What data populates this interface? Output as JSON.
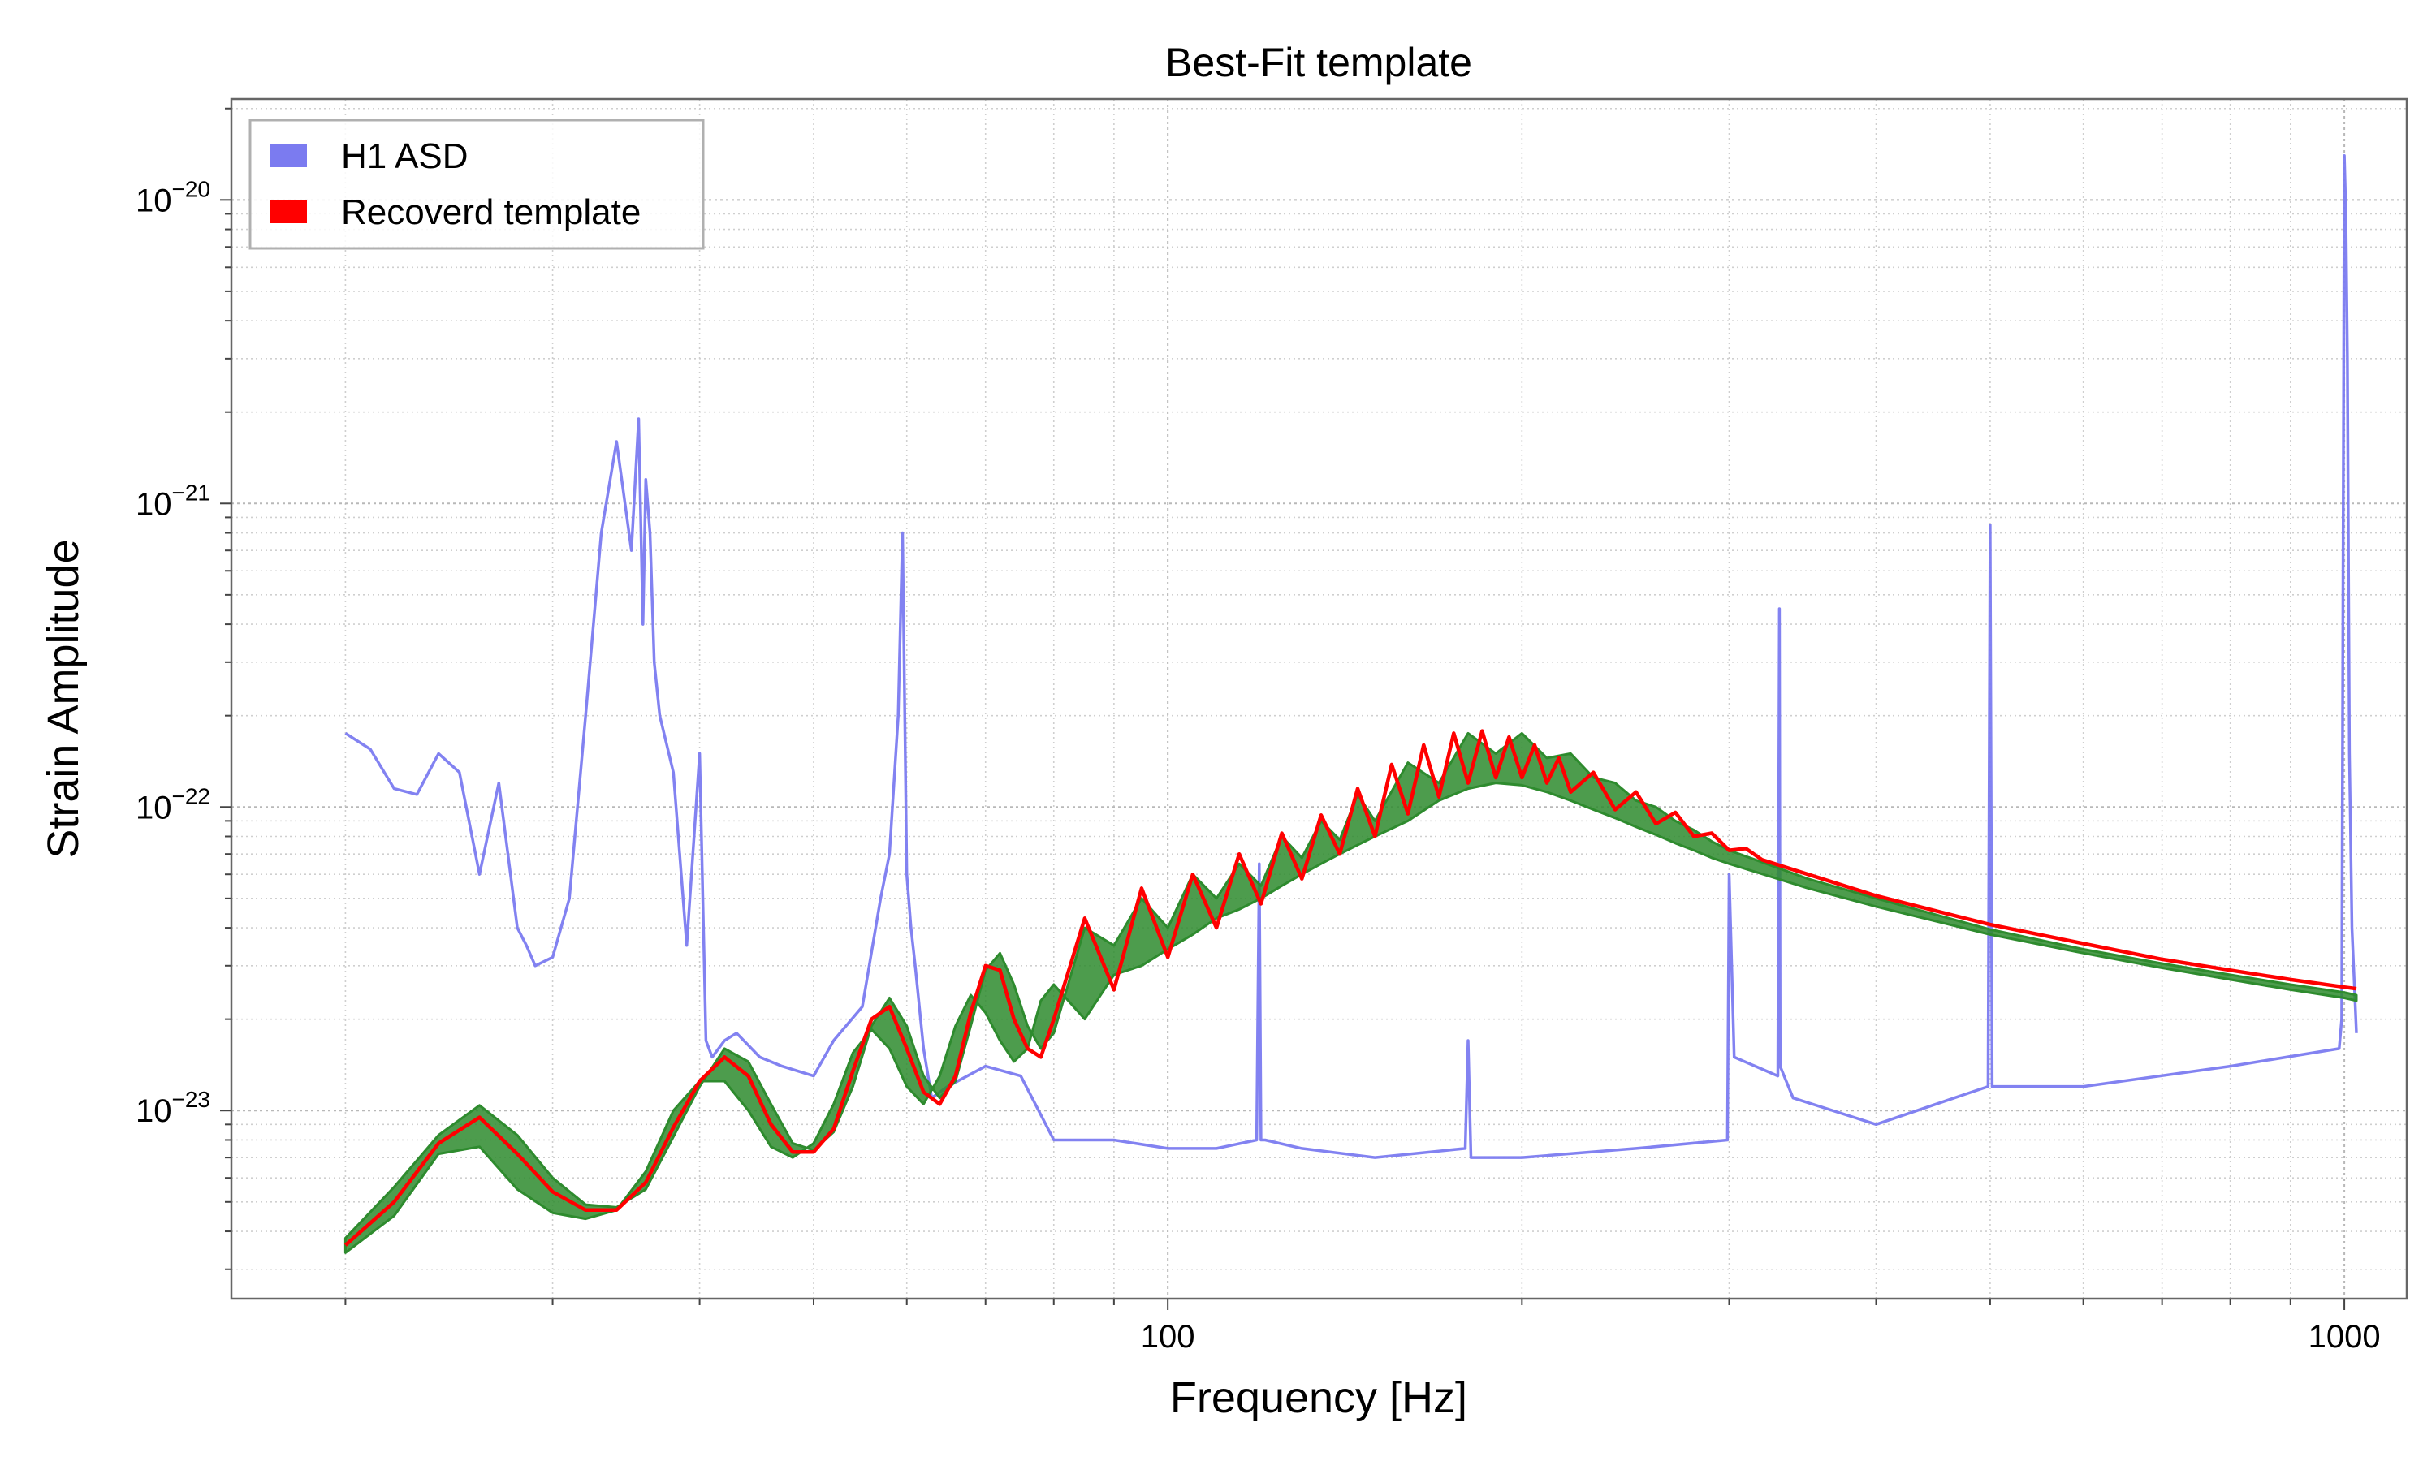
{
  "chart_data": {
    "type": "line",
    "title": "Best-Fit template",
    "xlabel": "Frequency [Hz]",
    "ylabel": "Strain Amplitude",
    "x_scale": "log",
    "y_scale": "log",
    "xlim": [
      16,
      1130
    ],
    "ylim": [
      2.4e-24,
      2.15e-20
    ],
    "grid": true,
    "legend_position": "top-left",
    "x_ticks": [
      {
        "value": 100,
        "label": "100"
      },
      {
        "value": 1000,
        "label": "1000"
      }
    ],
    "y_ticks": [
      {
        "value": 1e-23,
        "mantissa": "10",
        "exponent": "−23"
      },
      {
        "value": 1e-22,
        "mantissa": "10",
        "exponent": "−22"
      },
      {
        "value": 1e-21,
        "mantissa": "10",
        "exponent": "−21"
      },
      {
        "value": 1e-20,
        "mantissa": "10",
        "exponent": "−20"
      }
    ],
    "series": [
      {
        "name": "H1 ASD",
        "kind": "line",
        "color": "#7b7bf0",
        "x": [
          20,
          21,
          22,
          23,
          24,
          25,
          26,
          27,
          28,
          28.5,
          29,
          30,
          31,
          32,
          33,
          34,
          35,
          35.5,
          35.8,
          36,
          36.3,
          36.6,
          37,
          38,
          39,
          40,
          40.5,
          41,
          42,
          43,
          45,
          47,
          50,
          52,
          55,
          57,
          58,
          59,
          59.5,
          60,
          60.5,
          61,
          62,
          63,
          65,
          70,
          75,
          80,
          85,
          90,
          100,
          110,
          119,
          119.6,
          120,
          121,
          130,
          150,
          179,
          180,
          181,
          200,
          250,
          299,
          300,
          303,
          330,
          331,
          331.5,
          340,
          400,
          498,
          500,
          502,
          600,
          800,
          990,
          995,
          1000,
          1003,
          1006,
          1010,
          1015,
          1024
        ],
        "y": [
          1.75e-22,
          1.55e-22,
          1.15e-22,
          1.1e-22,
          1.5e-22,
          1.3e-22,
          6e-23,
          1.2e-22,
          4e-23,
          3.5e-23,
          3e-23,
          3.2e-23,
          5e-23,
          2e-22,
          8e-22,
          1.6e-21,
          7e-22,
          1.9e-21,
          4e-22,
          1.2e-21,
          8e-22,
          3e-22,
          2e-22,
          1.3e-22,
          3.5e-23,
          1.5e-22,
          1.7e-23,
          1.5e-23,
          1.7e-23,
          1.8e-23,
          1.5e-23,
          1.4e-23,
          1.3e-23,
          1.7e-23,
          2.2e-23,
          5e-23,
          7e-23,
          2e-22,
          8e-22,
          6e-23,
          4e-23,
          3e-23,
          1.6e-23,
          1.1e-23,
          1.2e-23,
          1.4e-23,
          1.3e-23,
          8e-24,
          8e-24,
          8e-24,
          7.5e-24,
          7.5e-24,
          8e-24,
          6.5e-23,
          8e-24,
          8e-24,
          7.5e-24,
          7e-24,
          7.5e-24,
          1.7e-23,
          7e-24,
          7e-24,
          7.5e-24,
          8e-24,
          6e-23,
          1.5e-23,
          1.3e-23,
          4.5e-22,
          1.4e-23,
          1.1e-23,
          9e-24,
          1.2e-23,
          8.5e-22,
          1.2e-23,
          1.2e-23,
          1.4e-23,
          1.6e-23,
          2e-23,
          1.4e-20,
          9e-21,
          3e-21,
          1.5e-22,
          4e-23,
          1.8e-23
        ]
      },
      {
        "name": "",
        "kind": "band",
        "color": "#2e8b2e",
        "x": [
          20,
          22,
          24,
          26,
          28,
          30,
          32,
          34,
          36,
          38,
          40,
          42,
          44,
          46,
          48,
          50,
          52,
          54,
          56,
          58,
          60,
          62,
          64,
          66,
          68,
          70,
          72,
          74,
          76,
          78,
          80,
          85,
          90,
          95,
          100,
          105,
          110,
          115,
          120,
          125,
          130,
          135,
          140,
          145,
          150,
          160,
          170,
          180,
          190,
          200,
          210,
          220,
          230,
          240,
          250,
          260,
          270,
          280,
          290,
          300,
          350,
          400,
          500,
          600,
          700,
          800,
          900,
          1000,
          1024
        ],
        "y_low": [
          3.4e-24,
          4.5e-24,
          7.2e-24,
          7.6e-24,
          5.5e-24,
          4.6e-24,
          4.4e-24,
          4.7e-24,
          6.3e-24,
          1e-23,
          1.25e-23,
          1.25e-23,
          1e-23,
          7.6e-24,
          7e-24,
          7.8e-24,
          1.05e-23,
          1.55e-23,
          1.85e-23,
          1.6e-23,
          1.2e-23,
          1.05e-23,
          1.3e-23,
          1.9e-23,
          2.4e-23,
          2.1e-23,
          1.7e-23,
          1.45e-23,
          1.6e-23,
          2.3e-23,
          2.6e-23,
          2e-23,
          2.8e-23,
          3e-23,
          3.4e-23,
          3.8e-23,
          4.3e-23,
          4.6e-23,
          5e-23,
          5.5e-23,
          6e-23,
          6.5e-23,
          7e-23,
          7.5e-23,
          8e-23,
          9e-23,
          1.05e-22,
          1.15e-22,
          1.2e-22,
          1.18e-22,
          1.12e-22,
          1.05e-22,
          9.8e-23,
          9.2e-23,
          8.6e-23,
          8.1e-23,
          7.6e-23,
          7.2e-23,
          6.8e-23,
          6.5e-23,
          5.4e-23,
          4.7e-23,
          3.8e-23,
          3.3e-23,
          2.95e-23,
          2.7e-23,
          2.5e-23,
          2.35e-23,
          2.3e-23
        ],
        "y_high": [
          3.8e-24,
          5.6e-24,
          8.3e-24,
          1.04e-23,
          8.3e-24,
          6e-24,
          4.9e-24,
          4.8e-24,
          5.5e-24,
          8.2e-24,
          1.2e-23,
          1.6e-23,
          1.45e-23,
          1.05e-23,
          7.8e-24,
          7.4e-24,
          8.5e-24,
          1.2e-23,
          1.9e-23,
          2.35e-23,
          1.9e-23,
          1.3e-23,
          1.1e-23,
          1.25e-23,
          1.9e-23,
          2.9e-23,
          3.3e-23,
          2.6e-23,
          1.9e-23,
          1.6e-23,
          1.8e-23,
          4e-23,
          3.5e-23,
          5e-23,
          4e-23,
          6e-23,
          5e-23,
          6.5e-23,
          5.5e-23,
          8e-23,
          6.8e-23,
          9e-23,
          7.8e-23,
          1.1e-22,
          9e-23,
          1.4e-22,
          1.2e-22,
          1.75e-22,
          1.5e-22,
          1.75e-22,
          1.45e-22,
          1.5e-22,
          1.25e-22,
          1.2e-22,
          1.05e-22,
          1e-22,
          9e-23,
          8.4e-23,
          7.7e-23,
          7.2e-23,
          5.8e-23,
          5e-23,
          3.95e-23,
          3.4e-23,
          3.05e-23,
          2.8e-23,
          2.6e-23,
          2.45e-23,
          2.4e-23
        ]
      },
      {
        "name": "Recoverd template",
        "kind": "line",
        "color": "#ff0000",
        "x": [
          20,
          22,
          24,
          26,
          28,
          30,
          32,
          34,
          36,
          38,
          40,
          42,
          44,
          46,
          48,
          50,
          52,
          54,
          56,
          58,
          60,
          62,
          64,
          66,
          68,
          70,
          72,
          74,
          76,
          78,
          80,
          85,
          90,
          95,
          100,
          105,
          110,
          115,
          120,
          125,
          130,
          135,
          140,
          145,
          150,
          155,
          160,
          165,
          170,
          175,
          180,
          185,
          190,
          195,
          200,
          205,
          210,
          215,
          220,
          230,
          240,
          250,
          260,
          270,
          280,
          290,
          300,
          310,
          320,
          350,
          400,
          500,
          600,
          700,
          800,
          900,
          1000,
          1024
        ],
        "y": [
          3.6e-24,
          5e-24,
          7.8e-24,
          9.5e-24,
          7.2e-24,
          5.4e-24,
          4.7e-24,
          4.7e-24,
          5.8e-24,
          8.8e-24,
          1.25e-23,
          1.5e-23,
          1.3e-23,
          9e-24,
          7.3e-24,
          7.3e-24,
          8.7e-24,
          1.35e-23,
          2e-23,
          2.2e-23,
          1.6e-23,
          1.15e-23,
          1.05e-23,
          1.3e-23,
          2.1e-23,
          3e-23,
          2.9e-23,
          2e-23,
          1.6e-23,
          1.5e-23,
          2e-23,
          4.3e-23,
          2.5e-23,
          5.4e-23,
          3.2e-23,
          6e-23,
          4e-23,
          7e-23,
          4.8e-23,
          8.2e-23,
          5.8e-23,
          9.4e-23,
          7e-23,
          1.15e-22,
          8e-23,
          1.38e-22,
          9.5e-23,
          1.6e-22,
          1.08e-22,
          1.75e-22,
          1.2e-22,
          1.78e-22,
          1.25e-22,
          1.7e-22,
          1.25e-22,
          1.6e-22,
          1.2e-22,
          1.45e-22,
          1.12e-22,
          1.3e-22,
          9.8e-23,
          1.12e-22,
          8.8e-23,
          9.6e-23,
          8e-23,
          8.2e-23,
          7.2e-23,
          7.3e-23,
          6.7e-23,
          6e-23,
          5.1e-23,
          4.1e-23,
          3.55e-23,
          3.15e-23,
          2.9e-23,
          2.7e-23,
          2.55e-23,
          2.52e-23
        ]
      }
    ],
    "legend": [
      {
        "label": "H1 ASD",
        "color": "#7b7bf0"
      },
      {
        "label": "Recoverd template",
        "color": "#ff0000"
      }
    ]
  }
}
